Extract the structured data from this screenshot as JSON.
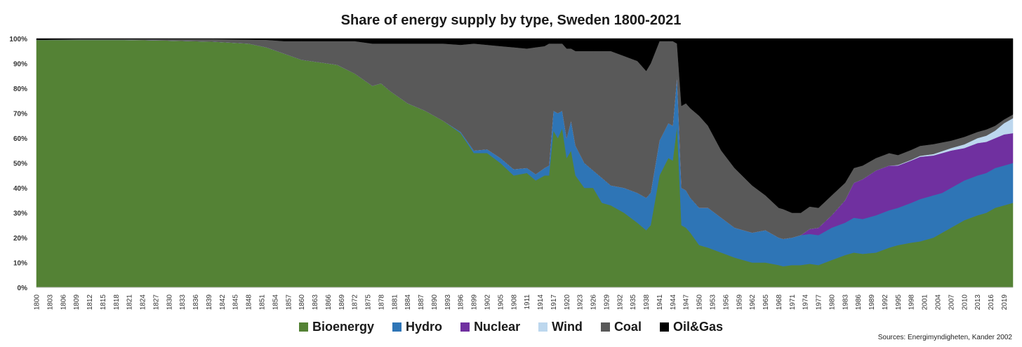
{
  "chart_data": {
    "type": "area",
    "stacked": true,
    "normalized": true,
    "title": "Share of energy supply by type, Sweden 1800-2021",
    "xlabel": "",
    "ylabel": "",
    "xlim": [
      1800,
      2021
    ],
    "ylim": [
      0,
      100
    ],
    "yticks": [
      "0%",
      "10%",
      "20%",
      "30%",
      "40%",
      "50%",
      "60%",
      "70%",
      "80%",
      "90%",
      "100%"
    ],
    "xtick_start": 1800,
    "xtick_step": 3,
    "xtick_extra": [
      2019
    ],
    "source": "Sources: Energimyndigheten, Kander 2002",
    "legend_position": "bottom",
    "x": [
      1800,
      1810,
      1820,
      1830,
      1840,
      1848,
      1852,
      1856,
      1860,
      1864,
      1868,
      1872,
      1876,
      1878,
      1880,
      1884,
      1888,
      1892,
      1896,
      1899,
      1902,
      1905,
      1908,
      1911,
      1913,
      1915,
      1916,
      1917,
      1918,
      1919,
      1920,
      1921,
      1922,
      1924,
      1926,
      1928,
      1930,
      1933,
      1936,
      1938,
      1939,
      1941,
      1943,
      1944,
      1945,
      1946,
      1947,
      1948,
      1950,
      1952,
      1955,
      1958,
      1962,
      1965,
      1968,
      1969,
      1971,
      1973,
      1975,
      1977,
      1980,
      1983,
      1985,
      1987,
      1990,
      1993,
      1995,
      1998,
      2000,
      2003,
      2005,
      2007,
      2010,
      2013,
      2015,
      2017,
      2019,
      2021
    ],
    "series": [
      {
        "name": "Bioenergy",
        "color": "#548235",
        "values": [
          99.5,
          99.5,
          99.5,
          99.2,
          98.8,
          98,
          96.5,
          94,
          91.5,
          90.5,
          89.5,
          86,
          81,
          82,
          79,
          74,
          71,
          67,
          62,
          54,
          54,
          50,
          45,
          46,
          43,
          45,
          45,
          63,
          60,
          64,
          52,
          55,
          45,
          40,
          40,
          34,
          33,
          30,
          26,
          23,
          25,
          45,
          52,
          51,
          65,
          25,
          24,
          22,
          17,
          16,
          14,
          12,
          10,
          10,
          9,
          8.5,
          9,
          9,
          9.5,
          9,
          11,
          13,
          14,
          13.5,
          14,
          16,
          17,
          18,
          18.5,
          20,
          22,
          24,
          27,
          29,
          30,
          32,
          33,
          34
        ]
      },
      {
        "name": "Hydro",
        "color": "#2E75B6",
        "values": [
          0,
          0,
          0,
          0,
          0,
          0,
          0,
          0,
          0,
          0,
          0,
          0,
          0,
          0,
          0,
          0,
          0,
          0,
          0.5,
          1,
          1.5,
          2,
          2.5,
          2,
          2.5,
          3,
          4,
          8,
          10,
          7,
          8,
          12,
          12,
          10,
          7,
          10,
          8,
          10,
          12,
          13,
          13,
          14,
          14,
          14,
          20,
          15,
          15,
          14,
          15,
          16,
          14,
          12,
          12,
          13,
          11,
          11,
          11,
          12,
          12,
          12,
          13,
          13,
          14,
          14,
          15,
          15,
          15,
          16,
          17,
          17,
          16,
          16,
          16,
          16,
          16,
          16,
          16,
          16
        ]
      },
      {
        "name": "Nuclear",
        "color": "#7030A0",
        "values": [
          0,
          0,
          0,
          0,
          0,
          0,
          0,
          0,
          0,
          0,
          0,
          0,
          0,
          0,
          0,
          0,
          0,
          0,
          0,
          0,
          0,
          0,
          0,
          0,
          0,
          0,
          0,
          0,
          0,
          0,
          0,
          0,
          0,
          0,
          0,
          0,
          0,
          0,
          0,
          0,
          0,
          0,
          0,
          0,
          0,
          0,
          0,
          0,
          0,
          0,
          0,
          0,
          0,
          0,
          0,
          0,
          0,
          0,
          2,
          3,
          5,
          9,
          14,
          16,
          18,
          18,
          17,
          17,
          17,
          16,
          16,
          15,
          13,
          13,
          12.5,
          12,
          12.5,
          12
        ]
      },
      {
        "name": "Wind",
        "color": "#BDD7EE",
        "values": [
          0,
          0,
          0,
          0,
          0,
          0,
          0,
          0,
          0,
          0,
          0,
          0,
          0,
          0,
          0,
          0,
          0,
          0,
          0,
          0,
          0,
          0,
          0,
          0,
          0,
          0,
          0,
          0,
          0,
          0,
          0,
          0,
          0,
          0,
          0,
          0,
          0,
          0,
          0,
          0,
          0,
          0,
          0,
          0,
          0,
          0,
          0,
          0,
          0,
          0,
          0,
          0,
          0,
          0,
          0,
          0,
          0,
          0,
          0,
          0,
          0,
          0,
          0,
          0,
          0,
          0,
          0.2,
          0.3,
          0.4,
          0.6,
          0.8,
          1,
          1.5,
          2,
          2.5,
          3,
          4.5,
          6
        ]
      },
      {
        "name": "Coal",
        "color": "#595959",
        "values": [
          0,
          0.3,
          0.3,
          0.6,
          1,
          1.6,
          3,
          5,
          7.5,
          8.5,
          9.5,
          13,
          17,
          16,
          19,
          24,
          27,
          31,
          35,
          43,
          42,
          45,
          49,
          48,
          51,
          49,
          49,
          27,
          28,
          27,
          36,
          29,
          38,
          45,
          48,
          51,
          54,
          53,
          53,
          51,
          52,
          40,
          33,
          34,
          13,
          33,
          35,
          36,
          37,
          33,
          27,
          24,
          19,
          14,
          12,
          12,
          10,
          9,
          9,
          8,
          8,
          7,
          6,
          5.5,
          5,
          5,
          4,
          4,
          4,
          4,
          3.5,
          3,
          3,
          2.5,
          2.5,
          2,
          1.5,
          1.5
        ]
      },
      {
        "name": "Oil&Gas",
        "color": "#000000",
        "values": [
          0.5,
          0.2,
          0.2,
          0.2,
          0.2,
          0.4,
          0.5,
          1,
          1,
          1,
          1,
          1,
          2,
          2,
          2,
          2,
          2,
          2,
          2.5,
          2,
          2.5,
          3,
          3.5,
          4,
          3.5,
          3,
          2,
          2,
          2,
          2,
          4,
          4,
          5,
          5,
          5,
          5,
          5,
          7,
          9,
          13,
          10,
          1,
          1,
          1,
          2,
          27,
          26,
          28,
          31,
          35,
          45,
          52,
          59,
          63,
          68,
          68.5,
          70,
          70,
          67.5,
          68,
          63,
          58,
          52,
          51,
          48,
          46,
          46.8,
          44.7,
          43.1,
          42.4,
          41.7,
          41,
          39.5,
          37.5,
          36.5,
          35,
          32.5,
          30.5
        ]
      }
    ]
  }
}
